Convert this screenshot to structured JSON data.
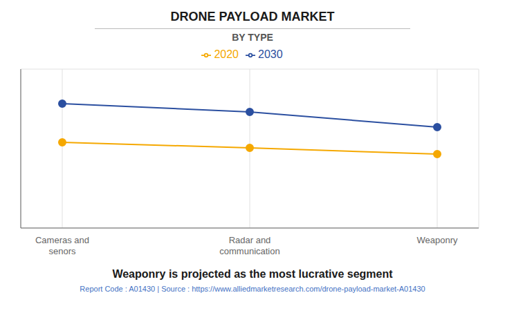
{
  "chart_data": {
    "type": "line",
    "title": "DRONE PAYLOAD MARKET",
    "subtitle": "BY TYPE",
    "categories": [
      "Cameras and\nsenors",
      "Radar and\ncommunication",
      "Weaponry"
    ],
    "series": [
      {
        "name": "2020",
        "color": "#F5A800",
        "values": [
          0.62,
          0.58,
          0.535
        ],
        "marker": "circle"
      },
      {
        "name": "2030",
        "color": "#2B4FA0",
        "values": [
          0.9,
          0.84,
          0.73
        ],
        "marker": "circle"
      }
    ],
    "ylim": [
      0,
      1.15
    ],
    "yticks": [
      0,
      0.2,
      0.4,
      0.6,
      0.8,
      1.0
    ],
    "grid": true,
    "legend": "top",
    "tick_labels": "x",
    "annotations": [
      "Weaponry is projected as the most lucrative segment",
      "Report Code : A01430  |  Source : https://www.alliedmarketresearch.com/drone-payload-market-A01430"
    ]
  }
}
